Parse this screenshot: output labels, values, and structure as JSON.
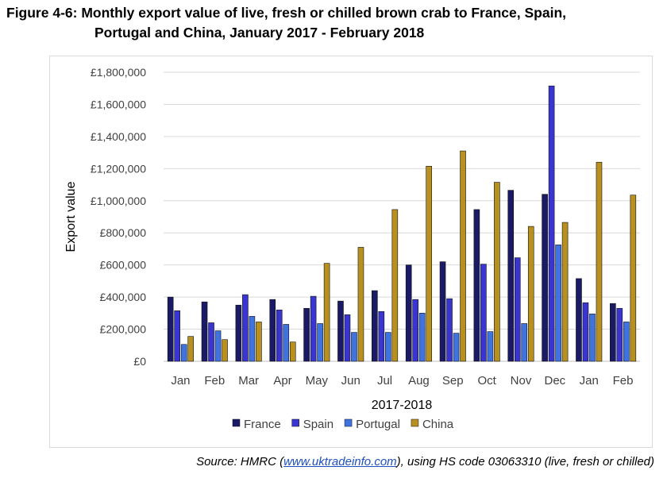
{
  "figure": {
    "title_line1": "Figure 4-6:  Monthly export value of live, fresh or chilled brown crab to France, Spain,",
    "title_line2": "Portugal and China, January 2017 - February 2018"
  },
  "source": {
    "prefix": "Source: HMRC (",
    "link_text": "www.uktradeinfo.com",
    "suffix": "), using HS code 03063310 (live, fresh or chilled)"
  },
  "chart_data": {
    "type": "bar",
    "title": "",
    "xlabel": "2017-2018",
    "ylabel": "Export value",
    "ylim": [
      0,
      1800000
    ],
    "yticks": [
      0,
      200000,
      400000,
      600000,
      800000,
      1000000,
      1200000,
      1400000,
      1600000,
      1800000
    ],
    "ytick_labels": [
      "£0",
      "£200,000",
      "£400,000",
      "£600,000",
      "£800,000",
      "£1,000,000",
      "£1,200,000",
      "£1,400,000",
      "£1,600,000",
      "£1,800,000"
    ],
    "grid": true,
    "legend_position": "bottom",
    "categories": [
      "Jan",
      "Feb",
      "Mar",
      "Apr",
      "May",
      "Jun",
      "Jul",
      "Aug",
      "Sep",
      "Oct",
      "Nov",
      "Dec",
      "Jan",
      "Feb"
    ],
    "series": [
      {
        "name": "France",
        "color": "#1a1a66",
        "values": [
          400000,
          370000,
          350000,
          385000,
          330000,
          375000,
          440000,
          600000,
          620000,
          945000,
          1065000,
          1040000,
          515000,
          360000
        ]
      },
      {
        "name": "Spain",
        "color": "#3a35d0",
        "values": [
          315000,
          240000,
          415000,
          320000,
          405000,
          290000,
          310000,
          385000,
          390000,
          605000,
          645000,
          1715000,
          365000,
          330000
        ]
      },
      {
        "name": "Portugal",
        "color": "#3f73e0",
        "values": [
          105000,
          190000,
          280000,
          230000,
          235000,
          180000,
          180000,
          300000,
          175000,
          185000,
          235000,
          725000,
          295000,
          245000
        ]
      },
      {
        "name": "China",
        "color": "#b8901f",
        "values": [
          155000,
          135000,
          245000,
          120000,
          610000,
          710000,
          945000,
          1215000,
          1310000,
          1115000,
          840000,
          865000,
          1240000,
          1035000
        ]
      }
    ]
  }
}
